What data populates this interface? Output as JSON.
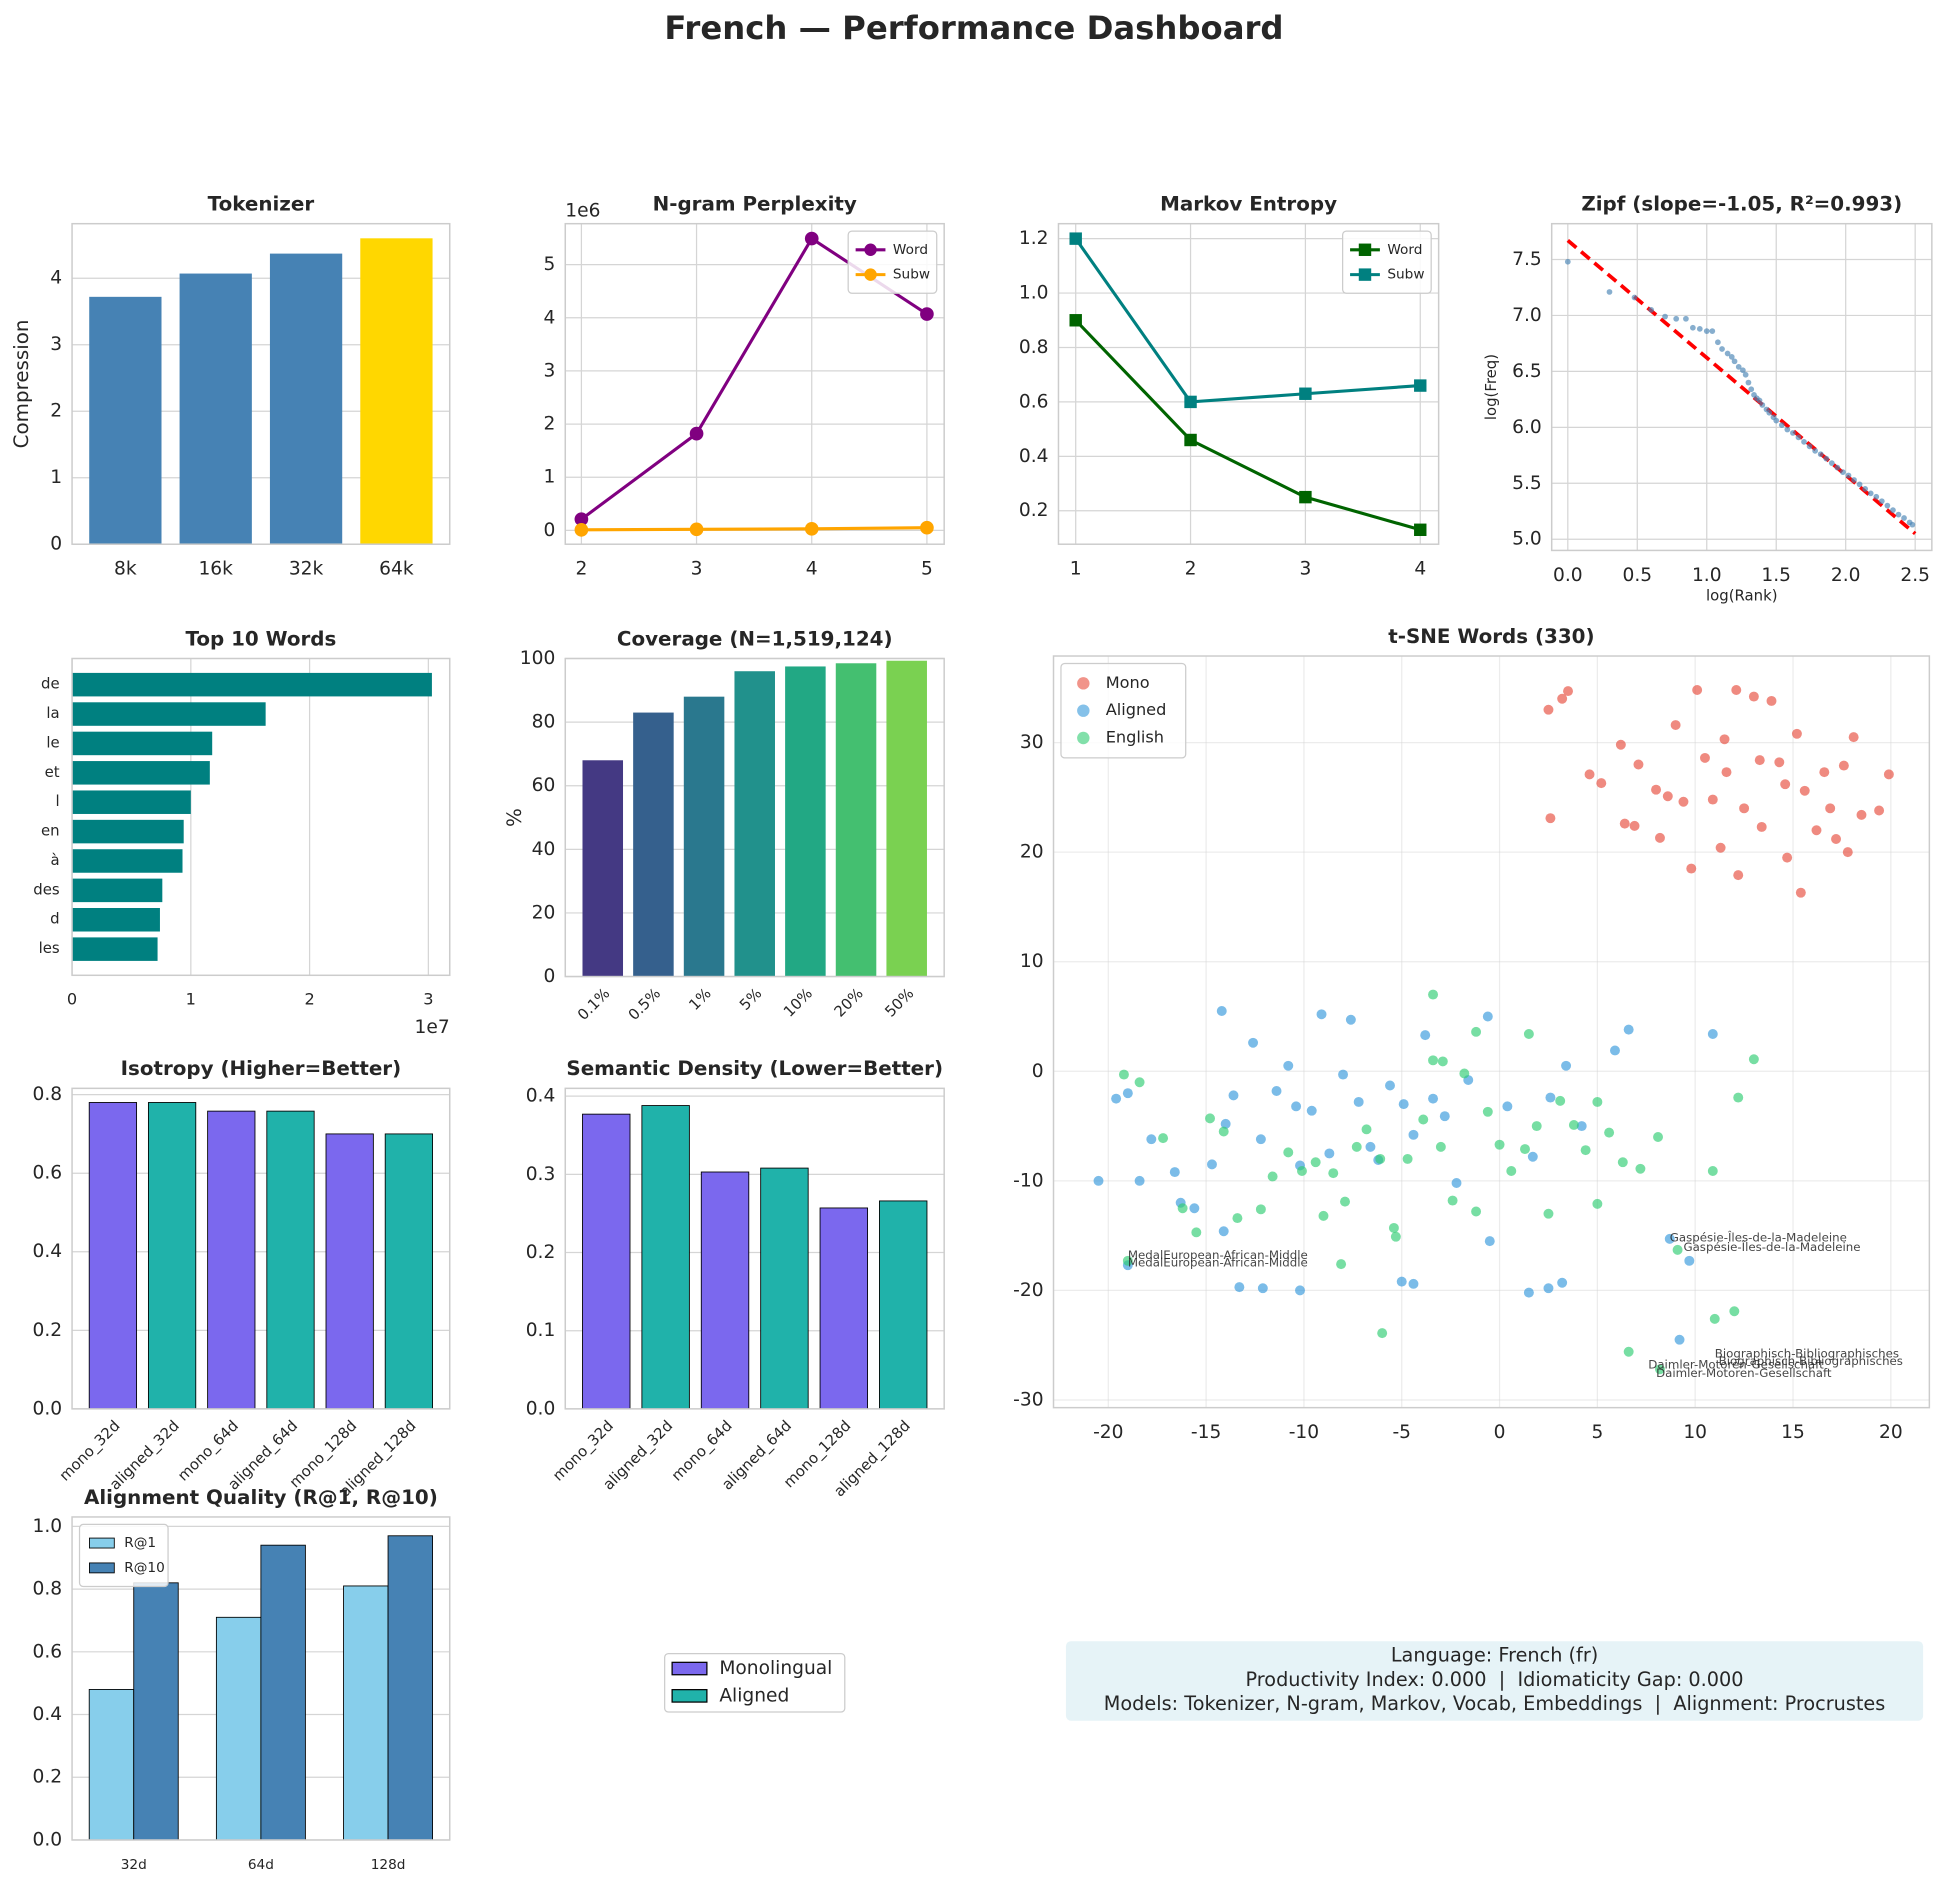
{
  "title": "French — Performance Dashboard",
  "chart_data": [
    {
      "type": "bar",
      "title": "Tokenizer",
      "ylabel": "Compression",
      "categories": [
        "8k",
        "16k",
        "32k",
        "64k"
      ],
      "values": [
        3.72,
        4.07,
        4.37,
        4.6
      ],
      "colors": [
        "#4682b4",
        "#4682b4",
        "#4682b4",
        "#ffd700"
      ],
      "ylim": [
        0,
        4.82
      ],
      "yticks": [
        0,
        1,
        2,
        3,
        4
      ],
      "grid": true
    },
    {
      "type": "line",
      "title": "N-gram Perplexity",
      "x": [
        2,
        3,
        4,
        5
      ],
      "series": [
        {
          "name": "Word",
          "color": "#800080",
          "values": [
            0.21,
            1.82,
            5.49,
            4.07
          ]
        },
        {
          "name": "Subw",
          "color": "#ffa500",
          "values": [
            0.01,
            0.02,
            0.03,
            0.05
          ]
        }
      ],
      "marker": "circle",
      "xlim": [
        1.86,
        5.15
      ],
      "ylim": [
        -0.26,
        5.77
      ],
      "xticks": [
        2,
        3,
        4,
        5
      ],
      "yticks": [
        0,
        1,
        2,
        3,
        4,
        5
      ],
      "y_offset_label": "1e6",
      "grid": true,
      "legend": "upper right"
    },
    {
      "type": "line",
      "title": "Markov Entropy",
      "x": [
        1,
        2,
        3,
        4
      ],
      "series": [
        {
          "name": "Word",
          "color": "#006400",
          "values": [
            0.9,
            0.46,
            0.25,
            0.13
          ]
        },
        {
          "name": "Subw",
          "color": "#008080",
          "values": [
            1.2,
            0.6,
            0.63,
            0.66
          ]
        }
      ],
      "marker": "square",
      "xlim": [
        0.85,
        4.16
      ],
      "ylim": [
        0.077,
        1.255
      ],
      "xticks": [
        1,
        2,
        3,
        4
      ],
      "yticks": [
        0.2,
        0.4,
        0.6,
        0.8,
        {
          "value": 1,
          "label": "1.0"
        },
        1.2
      ],
      "grid": true,
      "legend": "upper right"
    },
    {
      "type": "scatter",
      "title": "Zipf (slope=-1.05, R²=0.993)",
      "xlabel": "log(Rank)",
      "ylabel": "log(Freq)",
      "series": [
        {
          "color": "#4682b4",
          "x": [
            0,
            0.3,
            0.48,
            0.6,
            0.7,
            0.78,
            0.85,
            0.9,
            0.95,
            1.0,
            1.04,
            1.08,
            1.11,
            1.15,
            1.18,
            1.2,
            1.23,
            1.26,
            1.28,
            1.3,
            1.32,
            1.34,
            1.36,
            1.38,
            1.4,
            1.43,
            1.45,
            1.48,
            1.5,
            1.54,
            1.58,
            1.62,
            1.66,
            1.7,
            1.74,
            1.78,
            1.82,
            1.86,
            1.9,
            1.94,
            1.98,
            2.02,
            2.06,
            2.1,
            2.14,
            2.18,
            2.22,
            2.26,
            2.3,
            2.34,
            2.38,
            2.42,
            2.46,
            2.48
          ],
          "values": [
            7.48,
            7.21,
            7.16,
            7.05,
            6.99,
            6.97,
            6.97,
            6.89,
            6.88,
            6.86,
            6.86,
            6.76,
            6.7,
            6.66,
            6.63,
            6.59,
            6.54,
            6.51,
            6.47,
            6.4,
            6.34,
            6.29,
            6.26,
            6.24,
            6.2,
            6.16,
            6.13,
            6.09,
            6.06,
            6.02,
            5.98,
            5.95,
            5.91,
            5.87,
            5.83,
            5.79,
            5.76,
            5.72,
            5.68,
            5.64,
            5.6,
            5.57,
            5.53,
            5.49,
            5.45,
            5.41,
            5.38,
            5.34,
            5.3,
            5.26,
            5.22,
            5.19,
            5.15,
            5.13
          ]
        }
      ],
      "fit_line": {
        "color": "#ff0000",
        "x": [
          0,
          2.5
        ],
        "values": [
          7.67,
          5.05
        ]
      },
      "xlim": [
        -0.116,
        2.62
      ],
      "ylim": [
        4.9,
        7.82
      ],
      "xticks": [
        {
          "value": 0,
          "label": "0.0"
        },
        0.5,
        {
          "value": 1,
          "label": "1.0"
        },
        1.5,
        {
          "value": 2,
          "label": "2.0"
        },
        2.5
      ],
      "yticks": [
        {
          "value": 5,
          "label": "5.0"
        },
        5.5,
        {
          "value": 6,
          "label": "6.0"
        },
        6.5,
        {
          "value": 7,
          "label": "7.0"
        },
        7.5
      ],
      "grid": true
    },
    {
      "type": "barh",
      "title": "Top 10 Words",
      "categories": [
        "de",
        "la",
        "le",
        "et",
        "l",
        "en",
        "à",
        "des",
        "d",
        "les"
      ],
      "values": [
        3.03,
        1.63,
        1.18,
        1.16,
        1.0,
        0.94,
        0.93,
        0.76,
        0.74,
        0.72
      ],
      "color": "#008080",
      "xlim": [
        0,
        3.18
      ],
      "xticks": [
        0,
        1,
        2,
        3
      ],
      "x_offset_label": "1e7",
      "grid": true
    },
    {
      "type": "bar",
      "title": "Coverage (N=1,519,124)",
      "ylabel": "%",
      "categories": [
        "0.1%",
        "0.5%",
        "1%",
        "5%",
        "10%",
        "20%",
        "50%"
      ],
      "values": [
        68,
        83,
        88,
        96,
        97.5,
        98.5,
        99.3
      ],
      "colors": [
        "#443983",
        "#35608d",
        "#2a788e",
        "#21918c",
        "#22a884",
        "#44bf70",
        "#7ad151"
      ],
      "ylim": [
        0,
        100
      ],
      "yticks": [
        0,
        20,
        40,
        60,
        80,
        100
      ],
      "xtick_rotation": 45,
      "grid": true
    },
    {
      "type": "scatter",
      "title": "t-SNE Words (330)",
      "series": [
        {
          "name": "Mono",
          "color": "#e74c3c",
          "x": [
            2.5,
            3.2,
            3.5,
            2.6,
            4.6,
            5.2,
            6.2,
            6.4,
            7.1,
            8.2,
            8.6,
            9.0,
            9.4,
            10.1,
            10.5,
            10.9,
            11.3,
            11.6,
            12.1,
            12.5,
            13.0,
            13.4,
            13.9,
            14.3,
            14.7,
            15.2,
            15.6,
            16.2,
            16.6,
            17.2,
            17.6,
            18.1,
            18.5,
            19.4,
            19.9,
            9.8,
            11.5,
            13.3,
            15.4,
            17.8,
            12.2,
            8.0,
            6.9,
            14.6,
            16.9
          ],
          "values": [
            33,
            34,
            34.7,
            23.1,
            27.1,
            26.3,
            29.8,
            22.6,
            28.0,
            21.3,
            25.1,
            31.6,
            24.6,
            34.8,
            28.6,
            24.8,
            20.4,
            27.3,
            34.8,
            24.0,
            34.2,
            22.3,
            33.8,
            28.2,
            19.5,
            30.8,
            25.6,
            22.0,
            27.3,
            21.2,
            27.9,
            30.5,
            23.4,
            23.8,
            27.1,
            18.5,
            30.3,
            28.4,
            16.3,
            20.0,
            17.9,
            25.7,
            22.4,
            26.2,
            24.0
          ]
        },
        {
          "name": "Aligned",
          "color": "#3498db",
          "x": [
            -20.5,
            -19.6,
            -19,
            -18.4,
            -17.8,
            -16.6,
            -15.6,
            -14.7,
            -14.2,
            -14,
            -13.6,
            -12.6,
            -12.2,
            -11.4,
            -10.8,
            -10.4,
            -10.2,
            -9.6,
            -9.1,
            -8.7,
            -8,
            -7.6,
            -7.2,
            -6.6,
            -6.2,
            -5.6,
            -4.9,
            -4.4,
            -3.8,
            -3.4,
            -2.8,
            -2.2,
            -1.6,
            -0.6,
            0.4,
            1.7,
            2.6,
            3.4,
            4.2,
            5.9,
            6.6,
            10.9,
            8.7,
            9.2,
            9.7,
            -19,
            -13.3,
            -12.1,
            -10.2,
            -5,
            -4.4,
            -0.5,
            1.5,
            2.5,
            3.2,
            -14.1,
            -16.3
          ],
          "values": [
            -10,
            -2.5,
            -2,
            -10,
            -6.2,
            -9.2,
            -12.5,
            -8.5,
            5.5,
            -4.8,
            -2.2,
            2.6,
            -6.2,
            -1.8,
            0.5,
            -3.2,
            -8.6,
            -3.6,
            5.2,
            -7.5,
            -0.3,
            4.7,
            -2.8,
            -6.9,
            -8.1,
            -1.3,
            -3.0,
            -5.8,
            3.3,
            -2.5,
            -4.1,
            -10.2,
            -0.8,
            5.0,
            -3.2,
            -7.8,
            -2.4,
            0.5,
            -5.0,
            1.9,
            3.8,
            3.4,
            -15.3,
            -24.5,
            -17.3,
            -17.7,
            -19.7,
            -19.8,
            -20.0,
            -19.2,
            -19.4,
            -15.5,
            -20.2,
            -19.8,
            -19.3,
            -14.6,
            -12.0
          ]
        },
        {
          "name": "English",
          "color": "#2ecc71",
          "x": [
            -19.2,
            -18.4,
            -17.2,
            -16.2,
            -15.5,
            -14.8,
            -14.1,
            -13.4,
            -12.2,
            -11.6,
            -10.8,
            -10.1,
            -9.4,
            -9,
            -8.5,
            -7.9,
            -7.3,
            -6.8,
            -6.1,
            -5.4,
            -4.7,
            -3.9,
            -3.4,
            -3,
            -2.4,
            -1.8,
            -1.2,
            -0.6,
            0,
            0.6,
            1.3,
            1.9,
            2.5,
            3.1,
            3.8,
            4.4,
            5.0,
            5.6,
            6.3,
            7.2,
            8.1,
            10.9,
            13.0,
            12.2,
            -6,
            -3.4,
            -1.2,
            1.5,
            -19,
            -8.1,
            -5.3,
            -2.9,
            5.0,
            6.6,
            8.2,
            11.0,
            12.0,
            9.1
          ],
          "values": [
            -0.3,
            -1.0,
            -6.1,
            -12.5,
            -14.7,
            -4.3,
            -5.5,
            -13.4,
            -12.6,
            -9.6,
            -7.4,
            -9.1,
            -8.3,
            -13.2,
            -9.3,
            -11.9,
            -6.9,
            -5.3,
            -8.0,
            -14.3,
            -8.0,
            -4.4,
            1.0,
            -6.9,
            -11.8,
            -0.2,
            -12.8,
            -3.7,
            -6.7,
            -9.1,
            -7.1,
            -5.0,
            -13.0,
            -2.7,
            -4.9,
            -7.2,
            -12.1,
            -5.6,
            -8.3,
            -8.9,
            -6.0,
            -9.1,
            1.1,
            -2.4,
            -23.9,
            7.0,
            3.6,
            3.4,
            -17.3,
            -17.6,
            -15.1,
            0.9,
            -2.8,
            -25.6,
            -27.2,
            -22.6,
            -21.9,
            -16.3
          ]
        }
      ],
      "annotations": [
        {
          "text": "Gaspésie-Îles-de-la-Madeleine",
          "x": 8.7,
          "y": -15.2,
          "color": "#3498db"
        },
        {
          "text": "Gaspésie-Îles-de-la-Madeleine",
          "x": 9.4,
          "y": -16.1,
          "color": "#2ecc71"
        },
        {
          "text": "MedalEuropean-African-Middle",
          "x": -19,
          "y": -16.8,
          "color": "#2ecc71"
        },
        {
          "text": "MedalEuropean-African-Middle",
          "x": -19,
          "y": -17.5,
          "color": "#3498db"
        },
        {
          "text": "Biographisch-Bibliographisches",
          "x": 11,
          "y": -25.8,
          "color": "#2ecc71"
        },
        {
          "text": "Biographisch-Bibliographisches",
          "x": 11.2,
          "y": -26.5,
          "color": "#3498db"
        },
        {
          "text": "Daimler-Motoren-Gesellschaft",
          "x": 7.6,
          "y": -26.8,
          "color": "#2ecc71"
        },
        {
          "text": "Daimler-Motoren-Gesellschaft",
          "x": 8,
          "y": -27.6,
          "color": "#3498db"
        }
      ],
      "xlim": [
        -22.8,
        21.97
      ],
      "ylim": [
        -30.7,
        37.9
      ],
      "xticks": [
        -20,
        -15,
        -10,
        -5,
        0,
        5,
        10,
        15,
        20
      ],
      "yticks": [
        -30,
        -20,
        -10,
        0,
        10,
        20,
        30
      ],
      "grid": true,
      "legend": "upper left"
    },
    {
      "type": "bar",
      "title": "Isotropy (Higher=Better)",
      "categories": [
        "mono_32d",
        "aligned_32d",
        "mono_64d",
        "aligned_64d",
        "mono_128d",
        "aligned_128d"
      ],
      "values": [
        0.78,
        0.78,
        0.758,
        0.758,
        0.7,
        0.7
      ],
      "colors": [
        "#7b68ee",
        "#20b2aa",
        "#7b68ee",
        "#20b2aa",
        "#7b68ee",
        "#20b2aa"
      ],
      "edgecolor": "#000000",
      "ylim": [
        0,
        0.816
      ],
      "yticks": [
        {
          "value": 0,
          "label": "0.0"
        },
        0.2,
        0.4,
        0.6,
        0.8
      ],
      "xtick_rotation": 45,
      "grid": true
    },
    {
      "type": "bar",
      "title": "Semantic Density (Lower=Better)",
      "categories": [
        "mono_32d",
        "aligned_32d",
        "mono_64d",
        "aligned_64d",
        "mono_128d",
        "aligned_128d"
      ],
      "values": [
        0.377,
        0.388,
        0.303,
        0.308,
        0.257,
        0.266
      ],
      "colors": [
        "#7b68ee",
        "#20b2aa",
        "#7b68ee",
        "#20b2aa",
        "#7b68ee",
        "#20b2aa"
      ],
      "edgecolor": "#000000",
      "ylim": [
        0,
        0.41
      ],
      "yticks": [
        {
          "value": 0,
          "label": "0.0"
        },
        0.1,
        0.2,
        0.3,
        0.4
      ],
      "xtick_rotation": 45,
      "grid": true
    },
    {
      "type": "bar",
      "title": "Alignment Quality (R@1, R@10)",
      "categories": [
        "32d",
        "64d",
        "128d"
      ],
      "series": [
        {
          "name": "R@1",
          "color": "#87ceeb",
          "values": [
            0.48,
            0.71,
            0.81
          ]
        },
        {
          "name": "R@10",
          "color": "#4682b4",
          "values": [
            0.82,
            0.94,
            0.97
          ]
        }
      ],
      "edgecolor": "#000000",
      "ylim": [
        0,
        1.03
      ],
      "yticks": [
        {
          "value": 0,
          "label": "0.0"
        },
        0.2,
        0.4,
        0.6,
        0.8,
        {
          "value": 1,
          "label": "1.0"
        }
      ],
      "grid": true,
      "legend": "upper left"
    }
  ],
  "legend": {
    "edgecolor": "#000000",
    "entries": [
      {
        "label": "Monolingual",
        "color": "#7b68ee"
      },
      {
        "label": "Aligned",
        "color": "#20b2aa"
      }
    ]
  },
  "info_box": {
    "lines": [
      "Language: French (fr)",
      "Productivity Index: 0.000  |  Idiomaticity Gap: 0.000",
      "Models: Tokenizer, N-gram, Markov, Vocab, Embeddings  |  Alignment: Procrustes"
    ]
  }
}
